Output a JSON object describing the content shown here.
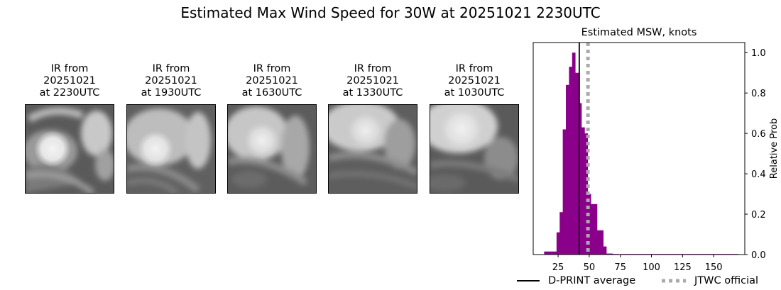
{
  "title": "Estimated Max Wind Speed for 30W at 20251021 2230UTC",
  "ir_panels": [
    {
      "line1": "IR from",
      "line2": "20251021",
      "line3": "at 2230UTC"
    },
    {
      "line1": "IR from",
      "line2": "20251021",
      "line3": "at 1930UTC"
    },
    {
      "line1": "IR from",
      "line2": "20251021",
      "line3": "at 1630UTC"
    },
    {
      "line1": "IR from",
      "line2": "20251021",
      "line3": "at 1330UTC"
    },
    {
      "line1": "IR from",
      "line2": "20251021",
      "line3": "at 1030UTC"
    }
  ],
  "chart_data": {
    "type": "bar",
    "title": "Estimated MSW, knots",
    "xlabel": "",
    "ylabel": "Relative Prob",
    "xlim": [
      5,
      175
    ],
    "ylim": [
      0,
      1.05
    ],
    "x_ticks": [
      25,
      50,
      75,
      100,
      125,
      150
    ],
    "y_ticks": [
      0.0,
      0.2,
      0.4,
      0.6,
      0.8,
      1.0
    ],
    "y_axis_side": "right",
    "bar_color": "#8b008b",
    "bin_width": 2.5,
    "bins": [
      {
        "x": 15,
        "value": 0.015
      },
      {
        "x": 17.5,
        "value": 0.015
      },
      {
        "x": 20,
        "value": 0.015
      },
      {
        "x": 22.5,
        "value": 0.015
      },
      {
        "x": 25,
        "value": 0.11
      },
      {
        "x": 27.5,
        "value": 0.21
      },
      {
        "x": 30,
        "value": 0.62
      },
      {
        "x": 32.5,
        "value": 0.84
      },
      {
        "x": 35,
        "value": 0.93
      },
      {
        "x": 37.5,
        "value": 1.0
      },
      {
        "x": 40,
        "value": 0.9
      },
      {
        "x": 42.5,
        "value": 0.75
      },
      {
        "x": 45,
        "value": 0.63
      },
      {
        "x": 47.5,
        "value": 0.6
      },
      {
        "x": 50,
        "value": 0.3
      },
      {
        "x": 52.5,
        "value": 0.25
      },
      {
        "x": 55,
        "value": 0.25
      },
      {
        "x": 57.5,
        "value": 0.12
      },
      {
        "x": 60,
        "value": 0.12
      },
      {
        "x": 62.5,
        "value": 0.04
      },
      {
        "x": 65,
        "value": 0.005
      },
      {
        "x": 67.5,
        "value": 0.005
      },
      {
        "x": 70,
        "value": 0.003
      },
      {
        "x": 72.5,
        "value": 0.003
      }
    ],
    "tail": {
      "x_start": 75,
      "x_end": 170,
      "value": 0.003
    },
    "vlines": [
      {
        "name": "D-PRINT average",
        "x": 42,
        "color": "#000000",
        "style": "solid"
      },
      {
        "name": "JTWC official",
        "x": 49,
        "color": "#aaaaaa",
        "style": "dotted"
      }
    ],
    "legend_position": "bottom"
  }
}
